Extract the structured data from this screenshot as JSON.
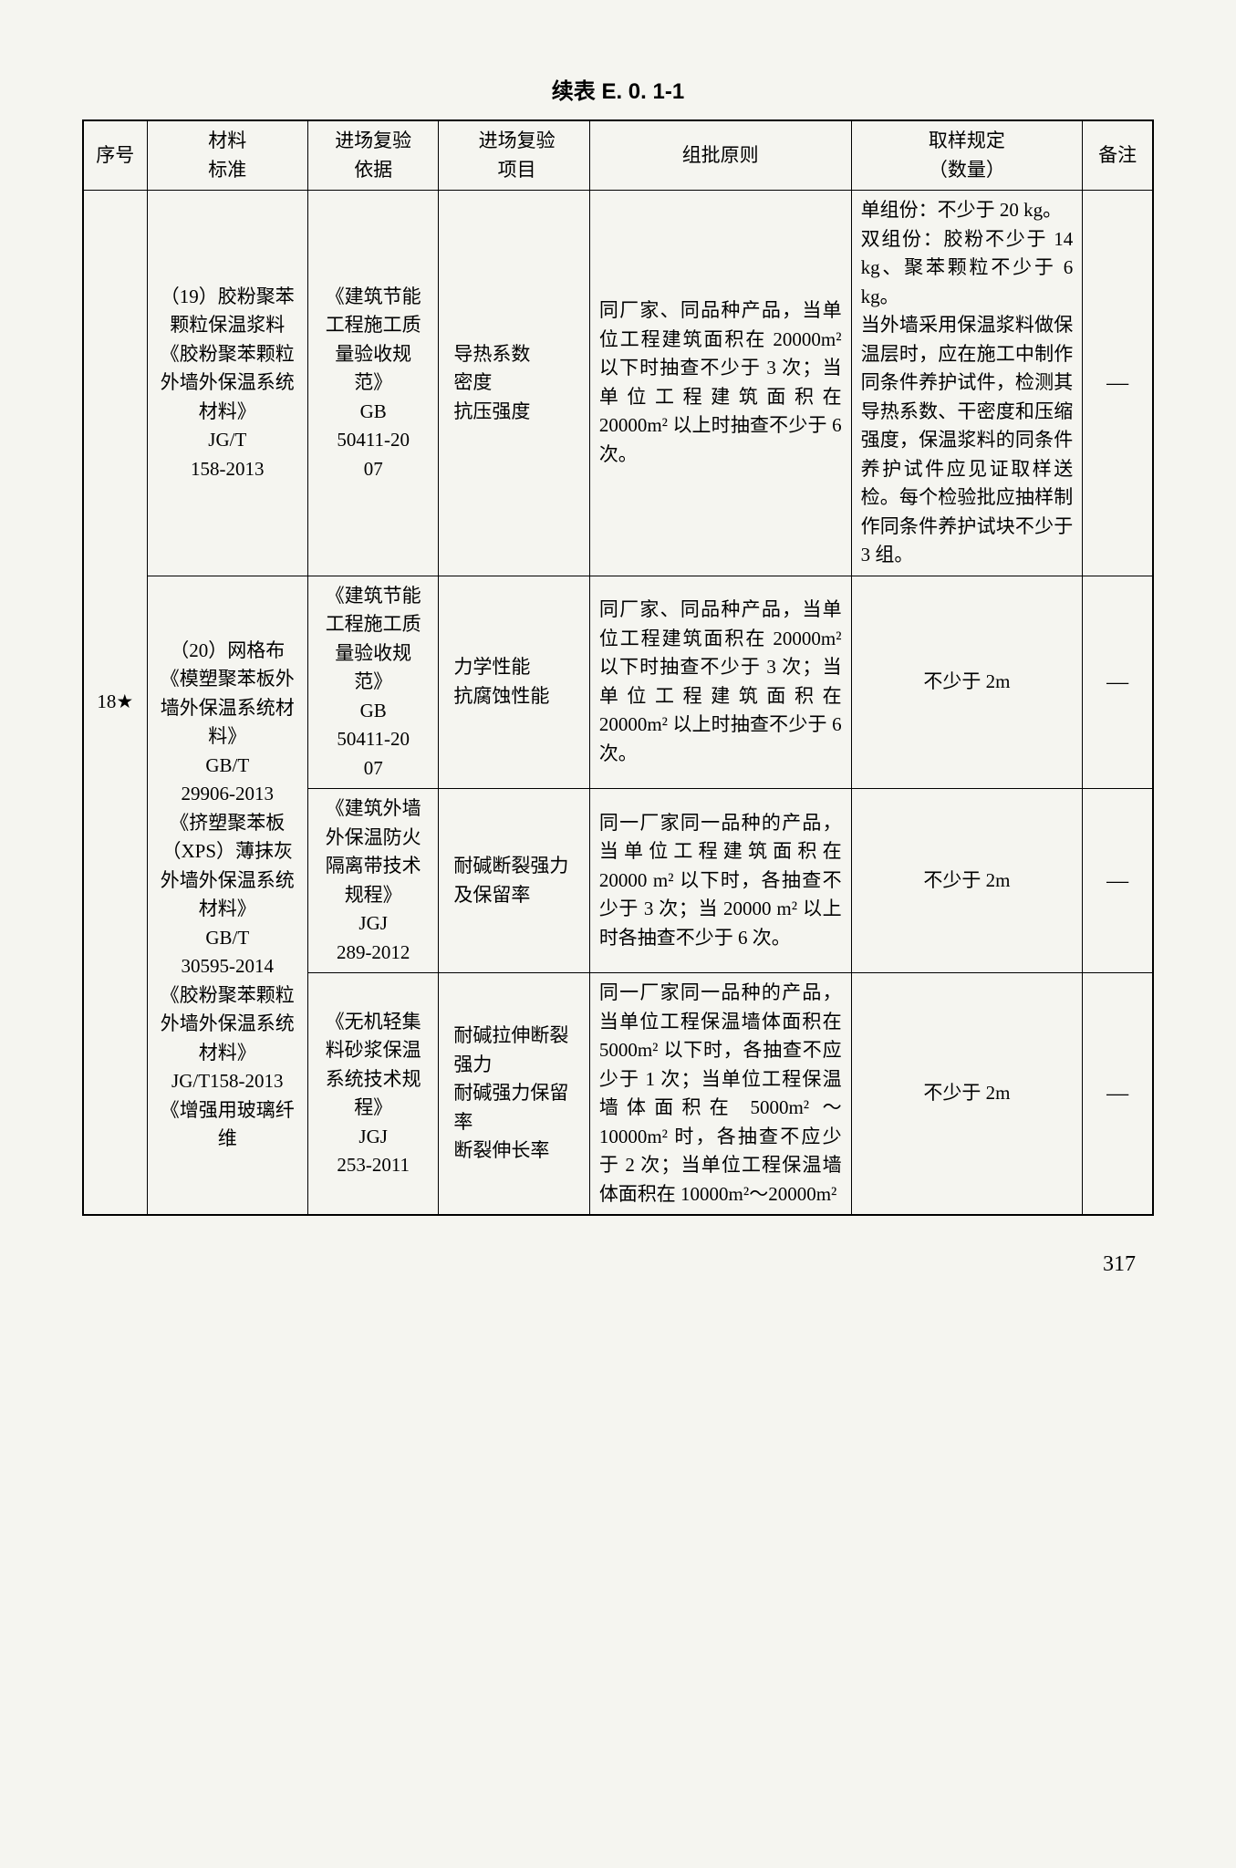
{
  "title": "续表 E. 0. 1-1",
  "table": {
    "columns": [
      "序号",
      "材料\n标准",
      "进场复验\n依据",
      "进场复验\n项目",
      "组批原则",
      "取样规定\n（数量）",
      "备注"
    ],
    "seq": "18★",
    "rows": [
      {
        "material": "（19）胶粉聚苯颗粒保温浆料\n《胶粉聚苯颗粒外墙外保温系统材料》\nJG/T\n158-2013",
        "basis": "《建筑节能工程施工质量验收规范》\nGB\n50411-20\n07",
        "items": "导热系数\n密度\n抗压强度",
        "batch": "同厂家、同品种产品，当单位工程建筑面积在 20000m² 以下时抽查不少于 3 次；当单位工程建筑面积在 20000m² 以上时抽查不少于 6 次。",
        "sample": "单组份：不少于 20 kg。\n双组份：胶粉不少于 14 kg、聚苯颗粒不少于 6 kg。\n当外墙采用保温浆料做保温层时，应在施工中制作同条件养护试件，检测其导热系数、干密度和压缩强度，保温浆料的同条件养护试件应见证取样送检。每个检验批应抽样制作同条件养护试块不少于 3 组。",
        "remark": "—"
      },
      {
        "material": "（20）网格布\n《模塑聚苯板外墙外保温系统材料》\nGB/T\n29906-2013\n《挤塑聚苯板（XPS）薄抹灰外墙外保温系统材料》\nGB/T\n30595-2014\n《胶粉聚苯颗粒外墙外保温系统材料》\nJG/T158-2013\n《增强用玻璃纤维",
        "sub": [
          {
            "basis": "《建筑节能工程施工质量验收规范》\nGB\n50411-20\n07",
            "items": "力学性能\n抗腐蚀性能",
            "batch": "同厂家、同品种产品，当单位工程建筑面积在 20000m² 以下时抽查不少于 3 次；当单位工程建筑面积在 20000m² 以上时抽查不少于 6 次。",
            "sample": "不少于 2m",
            "remark": "—"
          },
          {
            "basis": "《建筑外墙外保温防火隔离带技术规程》\nJGJ\n289-2012",
            "items": "耐碱断裂强力及保留率",
            "batch": "同一厂家同一品种的产品，当单位工程建筑面积在 20000 m² 以下时，各抽查不少于 3 次；当 20000 m² 以上时各抽查不少于 6 次。",
            "sample": "不少于 2m",
            "remark": "—"
          },
          {
            "basis": "《无机轻集料砂浆保温系统技术规程》\nJGJ\n253-2011",
            "items": "耐碱拉伸断裂强力\n耐碱强力保留率\n断裂伸长率",
            "batch": "同一厂家同一品种的产品，当单位工程保温墙体面积在 5000m² 以下时，各抽查不应少于 1 次；当单位工程保温墙体面积在 5000m² ～ 10000m² 时，各抽查不应少于 2 次；当单位工程保温墙体面积在 10000m²～20000m²",
            "sample": "不少于 2m",
            "remark": "—"
          }
        ]
      }
    ]
  },
  "pageNumber": "317"
}
